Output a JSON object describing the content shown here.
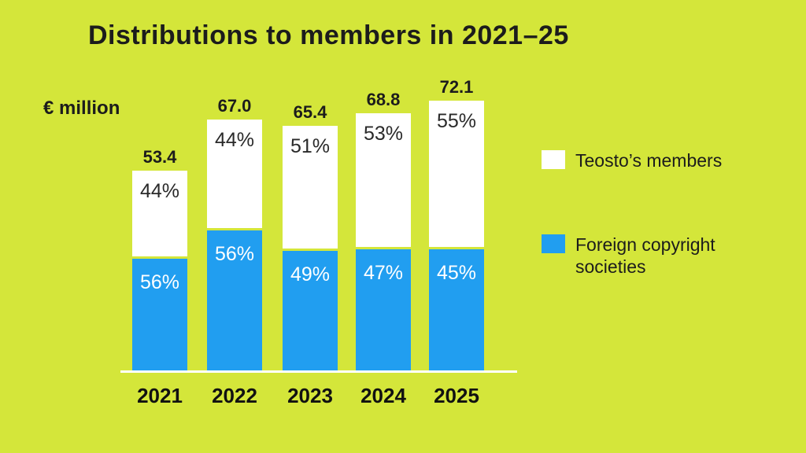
{
  "title": "Distributions to members in 2021–25",
  "y_axis_label": "€ million",
  "legend": {
    "items": [
      {
        "label": "Teosto’s members",
        "color": "#ffffff"
      },
      {
        "label": "Foreign copyright societies",
        "color": "#219ef0"
      }
    ],
    "position": "right"
  },
  "colors": {
    "background": "#d4e63a",
    "bar_members": "#ffffff",
    "bar_foreign": "#219ef0",
    "text": "#1c1c1c",
    "baseline": "#ffffff"
  },
  "chart_data": {
    "type": "bar",
    "stacked": true,
    "title": "Distributions to members in 2021–25",
    "ylabel": "€ million",
    "xlabel": "",
    "grid": false,
    "legend_position": "right",
    "categories": [
      "2021",
      "2022",
      "2023",
      "2024",
      "2025"
    ],
    "totals": [
      53.4,
      67.0,
      65.4,
      68.8,
      72.1
    ],
    "total_labels": [
      "53.4",
      "67.0",
      "65.4",
      "68.8",
      "72.1"
    ],
    "series": [
      {
        "name": "Teosto’s members",
        "color": "#ffffff",
        "percent": [
          44,
          44,
          51,
          53,
          55
        ]
      },
      {
        "name": "Foreign copyright societies",
        "color": "#219ef0",
        "percent": [
          56,
          56,
          49,
          47,
          45
        ]
      }
    ]
  }
}
